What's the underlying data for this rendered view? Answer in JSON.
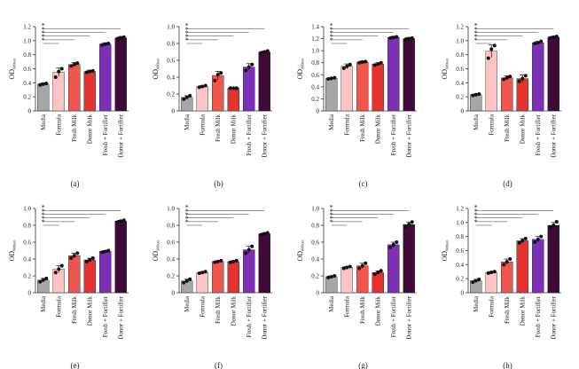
{
  "colors": {
    "bars": [
      "#a6a6a6",
      "#fbc4c4",
      "#f1564e",
      "#e3322f",
      "#7b30b5",
      "#3e0a36"
    ],
    "axis": "#333333",
    "point": "#111111",
    "sig": "#333333"
  },
  "chart_data": [
    {
      "type": "bar",
      "panel_label": "(a)",
      "ylabel_main": "OD",
      "ylabel_sub": "600nm",
      "categories": [
        "Media",
        "Formula",
        "Fresh Milk",
        "Donor Milk",
        "Fresh + Fortifier",
        "Donor + Fortifier"
      ],
      "ylim": [
        0,
        1.2
      ],
      "yticks": [
        "0",
        "0.2",
        "0.4",
        "0.6",
        "0.8",
        "1.0",
        "1.2"
      ],
      "values": [
        0.38,
        0.55,
        0.66,
        0.56,
        0.95,
        1.04
      ],
      "errors": [
        0.02,
        0.06,
        0.03,
        0.02,
        0.02,
        0.02
      ],
      "points": [
        [
          0.37,
          0.38,
          0.39
        ],
        [
          0.48,
          0.56,
          0.6
        ],
        [
          0.64,
          0.66,
          0.68
        ],
        [
          0.55,
          0.56,
          0.57
        ],
        [
          0.94,
          0.95,
          0.96
        ],
        [
          1.03,
          1.04,
          1.05
        ]
      ],
      "significance": [
        {
          "from": 0,
          "to": 1,
          "label": "*"
        },
        {
          "from": 0,
          "to": 2,
          "label": "*"
        },
        {
          "from": 0,
          "to": 3,
          "label": "*"
        },
        {
          "from": 0,
          "to": 4,
          "label": "*"
        },
        {
          "from": 0,
          "to": 5,
          "label": "*"
        }
      ]
    },
    {
      "type": "bar",
      "panel_label": "(b)",
      "ylabel_main": "OD",
      "ylabel_sub": "600nm",
      "categories": [
        "Media",
        "Formula",
        "Fresh Milk",
        "Donor Milk",
        "Fresh + Fortifier",
        "Donor + Fortifier"
      ],
      "ylim": [
        0,
        1.0
      ],
      "yticks": [
        "0",
        "0.2",
        "0.4",
        "0.6",
        "0.8",
        "1.0"
      ],
      "values": [
        0.16,
        0.29,
        0.42,
        0.27,
        0.52,
        0.7
      ],
      "errors": [
        0.02,
        0.01,
        0.05,
        0.01,
        0.04,
        0.01
      ],
      "points": [
        [
          0.14,
          0.16,
          0.18
        ],
        [
          0.28,
          0.29,
          0.3
        ],
        [
          0.36,
          0.43,
          0.45
        ],
        [
          0.27,
          0.27,
          0.27
        ],
        [
          0.48,
          0.52,
          0.55
        ],
        [
          0.69,
          0.7,
          0.71
        ]
      ],
      "significance": [
        {
          "from": 0,
          "to": 1,
          "label": "*"
        },
        {
          "from": 0,
          "to": 2,
          "label": "*"
        },
        {
          "from": 0,
          "to": 3,
          "label": "*"
        },
        {
          "from": 0,
          "to": 4,
          "label": "*"
        },
        {
          "from": 0,
          "to": 5,
          "label": "*"
        }
      ]
    },
    {
      "type": "bar",
      "panel_label": "(c)",
      "ylabel_main": "OD",
      "ylabel_sub": "600nm",
      "categories": [
        "Media",
        "Formula",
        "Fresh Milk",
        "Donor Milk",
        "Fresh + Fortifier",
        "Donor + Fortifier"
      ],
      "ylim": [
        0,
        1.4
      ],
      "yticks": [
        "0",
        "0.2",
        "0.4",
        "0.6",
        "0.8",
        "1.0",
        "1.2",
        "1.4"
      ],
      "values": [
        0.54,
        0.74,
        0.81,
        0.78,
        1.22,
        1.2
      ],
      "errors": [
        0.01,
        0.04,
        0.02,
        0.02,
        0.02,
        0.02
      ],
      "points": [
        [
          0.53,
          0.54,
          0.55
        ],
        [
          0.71,
          0.74,
          0.77
        ],
        [
          0.8,
          0.81,
          0.82
        ],
        [
          0.76,
          0.78,
          0.8
        ],
        [
          1.21,
          1.22,
          1.23
        ],
        [
          1.19,
          1.2,
          1.21
        ]
      ],
      "significance": [
        {
          "from": 0,
          "to": 1,
          "label": "*"
        },
        {
          "from": 0,
          "to": 2,
          "label": "*"
        },
        {
          "from": 0,
          "to": 3,
          "label": "*"
        },
        {
          "from": 0,
          "to": 4,
          "label": "*"
        },
        {
          "from": 0,
          "to": 5,
          "label": "*"
        }
      ]
    },
    {
      "type": "bar",
      "panel_label": "(d)",
      "ylabel_main": "OD",
      "ylabel_sub": "600nm",
      "categories": [
        "Media",
        "Formula",
        "Fresh Milk",
        "Donor Milk",
        "Fresh + Fortifier",
        "Donor + Fortifier"
      ],
      "ylim": [
        0,
        1.2
      ],
      "yticks": [
        "0",
        "0.2",
        "0.4",
        "0.6",
        "0.8",
        "1.0",
        "1.2"
      ],
      "values": [
        0.23,
        0.85,
        0.47,
        0.46,
        0.97,
        1.05
      ],
      "errors": [
        0.01,
        0.09,
        0.03,
        0.05,
        0.02,
        0.01
      ],
      "points": [
        [
          0.22,
          0.23,
          0.24
        ],
        [
          0.75,
          0.88,
          0.93
        ],
        [
          0.45,
          0.47,
          0.49
        ],
        [
          0.42,
          0.46,
          0.5
        ],
        [
          0.96,
          0.97,
          0.99
        ],
        [
          1.04,
          1.05,
          1.06
        ]
      ],
      "significance": [
        {
          "from": 0,
          "to": 1,
          "label": "*"
        },
        {
          "from": 0,
          "to": 2,
          "label": "*"
        },
        {
          "from": 0,
          "to": 3,
          "label": "*"
        },
        {
          "from": 0,
          "to": 4,
          "label": "*"
        },
        {
          "from": 0,
          "to": 5,
          "label": "*"
        }
      ]
    },
    {
      "type": "bar",
      "panel_label": "(e)",
      "ylabel_main": "OD",
      "ylabel_sub": "600nm",
      "categories": [
        "Media",
        "Formula",
        "Fresh Milk",
        "Donor Milk",
        "Fresh + Fortifier",
        "Donor + Fortifier"
      ],
      "ylim": [
        0,
        1.0
      ],
      "yticks": [
        "0",
        "0.2",
        "0.4",
        "0.6",
        "0.8",
        "1.0"
      ],
      "values": [
        0.15,
        0.28,
        0.44,
        0.39,
        0.49,
        0.85
      ],
      "errors": [
        0.02,
        0.04,
        0.03,
        0.02,
        0.01,
        0.01
      ],
      "points": [
        [
          0.13,
          0.15,
          0.17
        ],
        [
          0.24,
          0.28,
          0.32
        ],
        [
          0.41,
          0.44,
          0.47
        ],
        [
          0.37,
          0.39,
          0.41
        ],
        [
          0.48,
          0.49,
          0.5
        ],
        [
          0.84,
          0.85,
          0.86
        ]
      ],
      "significance": [
        {
          "from": 0,
          "to": 1,
          "label": "*"
        },
        {
          "from": 0,
          "to": 2,
          "label": "*"
        },
        {
          "from": 0,
          "to": 3,
          "label": "*"
        },
        {
          "from": 0,
          "to": 4,
          "label": "*"
        },
        {
          "from": 0,
          "to": 5,
          "label": "*"
        }
      ]
    },
    {
      "type": "bar",
      "panel_label": "(f)",
      "ylabel_main": "OD",
      "ylabel_sub": "600nm",
      "categories": [
        "Media",
        "Formula",
        "Fresh Milk",
        "Donor Milk",
        "Fresh + Fortifier",
        "Donor + Fortifier"
      ],
      "ylim": [
        0,
        1.0
      ],
      "yticks": [
        "0",
        "0.2",
        "0.4",
        "0.6",
        "0.8",
        "1.0"
      ],
      "values": [
        0.14,
        0.24,
        0.37,
        0.37,
        0.51,
        0.7
      ],
      "errors": [
        0.02,
        0.01,
        0.01,
        0.01,
        0.04,
        0.01
      ],
      "points": [
        [
          0.12,
          0.14,
          0.16
        ],
        [
          0.23,
          0.24,
          0.25
        ],
        [
          0.36,
          0.37,
          0.38
        ],
        [
          0.36,
          0.37,
          0.38
        ],
        [
          0.47,
          0.51,
          0.55
        ],
        [
          0.69,
          0.7,
          0.71
        ]
      ],
      "significance": [
        {
          "from": 0,
          "to": 1,
          "label": "*"
        },
        {
          "from": 0,
          "to": 2,
          "label": "*"
        },
        {
          "from": 0,
          "to": 3,
          "label": "*"
        },
        {
          "from": 0,
          "to": 4,
          "label": "*"
        },
        {
          "from": 0,
          "to": 5,
          "label": "*"
        }
      ]
    },
    {
      "type": "bar",
      "panel_label": "(g)",
      "ylabel_main": "OD",
      "ylabel_sub": "600nm",
      "categories": [
        "Media",
        "Formula",
        "Fresh Milk",
        "Donor Milk",
        "Fresh + Fortifier",
        "Donor + Fortifier"
      ],
      "ylim": [
        0,
        1.0
      ],
      "yticks": [
        "0",
        "0.2",
        "0.4",
        "0.6",
        "0.8",
        "1.0"
      ],
      "values": [
        0.19,
        0.3,
        0.32,
        0.24,
        0.57,
        0.81
      ],
      "errors": [
        0.01,
        0.01,
        0.03,
        0.02,
        0.03,
        0.03
      ],
      "points": [
        [
          0.18,
          0.19,
          0.2
        ],
        [
          0.29,
          0.3,
          0.31
        ],
        [
          0.29,
          0.32,
          0.35
        ],
        [
          0.22,
          0.24,
          0.26
        ],
        [
          0.54,
          0.57,
          0.6
        ],
        [
          0.78,
          0.81,
          0.84
        ]
      ],
      "significance": [
        {
          "from": 0,
          "to": 1,
          "label": "*"
        },
        {
          "from": 0,
          "to": 2,
          "label": "*"
        },
        {
          "from": 0,
          "to": 3,
          "label": "*"
        },
        {
          "from": 0,
          "to": 4,
          "label": "*"
        },
        {
          "from": 0,
          "to": 5,
          "label": "*"
        }
      ]
    },
    {
      "type": "bar",
      "panel_label": "(h)",
      "ylabel_main": "OD",
      "ylabel_sub": "600nm",
      "categories": [
        "Media",
        "Formula",
        "Fresh Milk",
        "Donor Milk",
        "Fresh + Fortifier",
        "Donor + Fortifier"
      ],
      "ylim": [
        0,
        1.2
      ],
      "yticks": [
        "0",
        "0.2",
        "0.4",
        "0.6",
        "0.8",
        "1.0",
        "1.2"
      ],
      "values": [
        0.17,
        0.29,
        0.44,
        0.74,
        0.76,
        0.96
      ],
      "errors": [
        0.02,
        0.01,
        0.04,
        0.03,
        0.04,
        0.04
      ],
      "points": [
        [
          0.15,
          0.17,
          0.19
        ],
        [
          0.28,
          0.29,
          0.3
        ],
        [
          0.4,
          0.44,
          0.48
        ],
        [
          0.71,
          0.74,
          0.77
        ],
        [
          0.72,
          0.76,
          0.8
        ],
        [
          0.93,
          0.96,
          1.01
        ]
      ],
      "significance": [
        {
          "from": 0,
          "to": 1,
          "label": "*"
        },
        {
          "from": 0,
          "to": 2,
          "label": "*"
        },
        {
          "from": 0,
          "to": 3,
          "label": "*"
        },
        {
          "from": 0,
          "to": 4,
          "label": "*"
        },
        {
          "from": 0,
          "to": 5,
          "label": "*"
        }
      ]
    }
  ]
}
